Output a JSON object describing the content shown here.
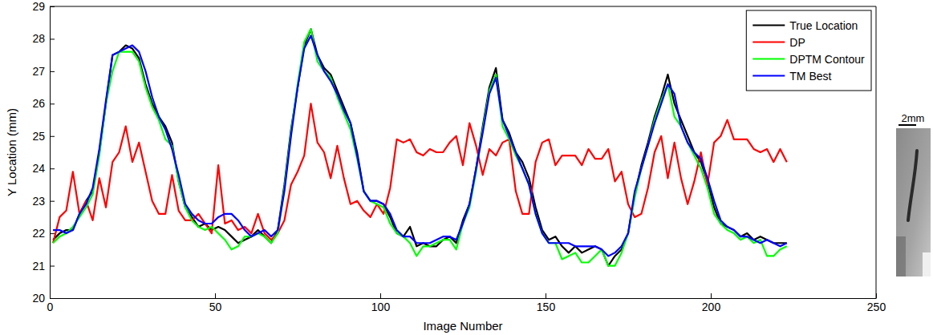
{
  "chart_data": {
    "type": "line",
    "x_label": "Image Number",
    "y_label": "Y Location (mm)",
    "annotations": [
      "2mm"
    ],
    "xlim": [
      0,
      250
    ],
    "xticks": [
      0,
      50,
      100,
      150,
      200,
      250
    ],
    "ylim": [
      20,
      29
    ],
    "yticks": [
      20,
      21,
      22,
      23,
      24,
      25,
      26,
      27,
      28,
      29
    ],
    "grid": false,
    "legend": "upper right",
    "x": [
      1,
      3,
      5,
      7,
      9,
      11,
      13,
      15,
      17,
      19,
      21,
      23,
      25,
      27,
      29,
      31,
      33,
      35,
      37,
      39,
      41,
      43,
      45,
      47,
      49,
      51,
      53,
      55,
      57,
      59,
      61,
      63,
      65,
      67,
      69,
      71,
      73,
      75,
      77,
      79,
      81,
      83,
      85,
      87,
      89,
      91,
      93,
      95,
      97,
      99,
      101,
      103,
      105,
      107,
      109,
      111,
      113,
      115,
      117,
      119,
      121,
      123,
      125,
      127,
      129,
      131,
      133,
      135,
      137,
      139,
      141,
      143,
      145,
      147,
      149,
      151,
      153,
      155,
      157,
      159,
      161,
      163,
      165,
      167,
      169,
      171,
      173,
      175,
      177,
      179,
      181,
      183,
      185,
      187,
      189,
      191,
      193,
      195,
      197,
      199,
      201,
      203,
      205,
      207,
      209,
      211,
      213,
      215,
      217,
      219,
      221,
      223
    ],
    "series": [
      {
        "name": "True Location",
        "color": "#000000",
        "values": [
          21.8,
          22.0,
          22.1,
          22.1,
          22.6,
          23.0,
          23.3,
          24.5,
          26.0,
          27.5,
          27.6,
          27.8,
          27.7,
          27.4,
          26.6,
          26.0,
          25.6,
          25.3,
          24.8,
          23.6,
          22.8,
          22.5,
          22.2,
          22.3,
          22.1,
          22.2,
          22.1,
          21.9,
          21.7,
          21.8,
          21.9,
          22.1,
          21.9,
          21.7,
          22.1,
          23.5,
          25.2,
          26.5,
          27.8,
          28.3,
          27.5,
          27.1,
          26.9,
          26.4,
          25.9,
          25.4,
          24.5,
          23.3,
          23.0,
          23.0,
          22.9,
          22.5,
          22.0,
          21.9,
          22.2,
          21.6,
          21.7,
          21.6,
          21.6,
          21.8,
          21.9,
          21.7,
          22.4,
          22.9,
          24.0,
          25.3,
          26.5,
          27.1,
          25.5,
          25.1,
          24.5,
          24.2,
          23.7,
          22.8,
          22.1,
          21.8,
          21.9,
          21.6,
          21.4,
          21.6,
          21.4,
          21.5,
          21.6,
          21.5,
          21.0,
          21.3,
          21.5,
          22.0,
          23.2,
          24.1,
          24.8,
          25.6,
          26.2,
          26.9,
          26.0,
          25.5,
          25.0,
          24.5,
          24.2,
          23.6,
          22.8,
          22.3,
          22.2,
          22.1,
          21.9,
          22.0,
          21.8,
          21.9,
          21.8,
          21.7,
          21.7,
          21.7
        ]
      },
      {
        "name": "DP",
        "color": "#ff0000",
        "values": [
          21.7,
          22.5,
          22.7,
          23.9,
          22.6,
          23.0,
          22.4,
          23.7,
          22.8,
          24.2,
          24.5,
          25.3,
          24.2,
          24.8,
          23.9,
          23.0,
          22.6,
          22.6,
          23.8,
          22.7,
          22.4,
          22.4,
          22.6,
          22.3,
          22.0,
          24.1,
          22.3,
          22.4,
          22.1,
          22.2,
          22.0,
          22.6,
          22.0,
          21.8,
          22.0,
          22.4,
          23.5,
          23.9,
          24.4,
          26.0,
          24.8,
          24.5,
          23.7,
          24.7,
          23.7,
          22.9,
          23.0,
          22.7,
          22.5,
          22.9,
          22.6,
          23.4,
          24.9,
          24.8,
          24.9,
          24.5,
          24.4,
          24.6,
          24.5,
          24.5,
          24.8,
          25.0,
          24.1,
          25.4,
          24.7,
          23.8,
          24.6,
          24.4,
          24.8,
          24.9,
          23.3,
          22.6,
          22.6,
          24.2,
          24.8,
          24.9,
          24.1,
          24.4,
          24.4,
          24.4,
          24.1,
          24.6,
          24.3,
          24.3,
          24.6,
          23.6,
          23.9,
          22.9,
          22.5,
          22.6,
          23.4,
          24.5,
          25.0,
          23.7,
          24.8,
          23.7,
          22.9,
          23.6,
          24.5,
          23.5,
          24.8,
          25.0,
          25.5,
          24.9,
          24.9,
          24.9,
          24.6,
          24.5,
          24.6,
          24.2,
          24.6,
          24.2
        ]
      },
      {
        "name": "DPTM Contour",
        "color": "#00ff00",
        "values": [
          21.7,
          21.9,
          22.0,
          22.2,
          22.5,
          22.8,
          23.2,
          24.4,
          26.0,
          27.0,
          27.6,
          27.6,
          27.6,
          27.3,
          26.5,
          25.9,
          25.5,
          24.9,
          24.7,
          23.6,
          22.8,
          22.4,
          22.2,
          22.1,
          22.2,
          22.0,
          21.8,
          21.5,
          21.6,
          21.9,
          21.9,
          22.0,
          21.9,
          21.7,
          22.0,
          23.4,
          25.1,
          26.6,
          27.9,
          28.3,
          27.3,
          27.0,
          26.8,
          26.2,
          25.7,
          25.2,
          24.3,
          23.3,
          23.0,
          22.9,
          22.8,
          22.3,
          22.0,
          21.9,
          21.7,
          21.3,
          21.6,
          21.6,
          21.7,
          21.8,
          21.8,
          21.5,
          22.3,
          22.8,
          23.9,
          25.2,
          26.4,
          26.9,
          25.3,
          24.9,
          24.4,
          24.0,
          23.5,
          22.6,
          22.0,
          21.7,
          21.7,
          21.2,
          21.3,
          21.4,
          21.1,
          21.1,
          21.3,
          21.5,
          21.0,
          21.0,
          21.4,
          22.0,
          23.1,
          24.0,
          24.7,
          25.5,
          26.1,
          26.6,
          25.6,
          25.3,
          24.8,
          24.4,
          24.0,
          23.4,
          22.6,
          22.3,
          22.1,
          22.0,
          21.8,
          21.9,
          21.7,
          21.8,
          21.3,
          21.3,
          21.5,
          21.6
        ]
      },
      {
        "name": "TM Best",
        "color": "#0000ff",
        "values": [
          22.1,
          22.1,
          22.0,
          22.1,
          22.6,
          22.9,
          23.4,
          24.6,
          26.1,
          27.5,
          27.6,
          27.7,
          27.8,
          27.6,
          27.0,
          26.2,
          25.6,
          25.2,
          24.6,
          23.8,
          22.9,
          22.6,
          22.4,
          22.3,
          22.3,
          22.5,
          22.6,
          22.6,
          22.4,
          22.1,
          21.9,
          22.0,
          22.1,
          21.9,
          22.1,
          23.3,
          25.0,
          26.5,
          27.7,
          28.1,
          27.5,
          27.0,
          26.7,
          26.3,
          25.8,
          25.4,
          24.4,
          23.3,
          23.0,
          23.0,
          22.9,
          22.6,
          22.1,
          21.9,
          21.9,
          21.7,
          21.7,
          21.7,
          21.8,
          21.9,
          21.9,
          21.8,
          22.3,
          22.9,
          24.0,
          25.1,
          26.3,
          26.8,
          25.5,
          25.0,
          24.5,
          24.0,
          23.5,
          22.6,
          22.0,
          21.7,
          21.7,
          21.7,
          21.7,
          21.6,
          21.6,
          21.6,
          21.6,
          21.5,
          21.3,
          21.4,
          21.6,
          22.0,
          23.3,
          24.0,
          24.7,
          25.4,
          26.0,
          26.6,
          26.3,
          25.3,
          24.8,
          24.5,
          24.3,
          23.7,
          23.0,
          22.4,
          22.2,
          22.1,
          21.9,
          21.9,
          21.8,
          21.7,
          21.8,
          21.7,
          21.6,
          21.7
        ]
      }
    ]
  }
}
